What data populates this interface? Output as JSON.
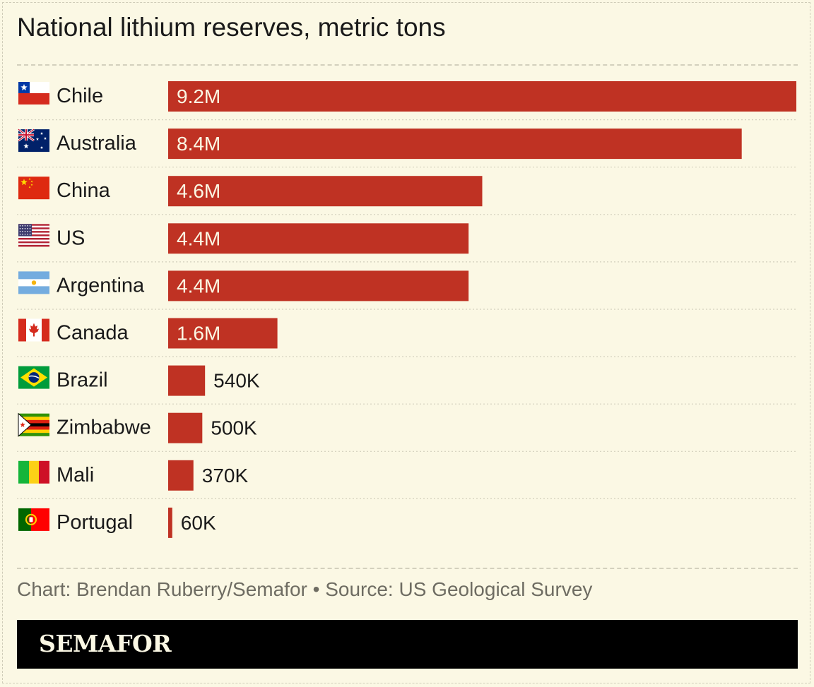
{
  "title": "National lithium reserves, metric tons",
  "caption": "Chart: Brendan Ruberry/Semafor • Source: US Geological Survey",
  "footer": {
    "logo": "SEMAFOR"
  },
  "colors": {
    "background": "#fbf8e4",
    "bar": "#bf3223",
    "text": "#1a1a1a",
    "muted": "#6e6c62",
    "footer": "#000000"
  },
  "chart_data": {
    "type": "bar",
    "orientation": "horizontal",
    "categories": [
      "Chile",
      "Australia",
      "China",
      "US",
      "Argentina",
      "Canada",
      "Brazil",
      "Zimbabwe",
      "Mali",
      "Portugal"
    ],
    "values": [
      9200000,
      8400000,
      4600000,
      4400000,
      4400000,
      1600000,
      540000,
      500000,
      370000,
      60000
    ],
    "labels": [
      "9.2M",
      "8.4M",
      "4.6M",
      "4.4M",
      "4.4M",
      "1.6M",
      "540K",
      "500K",
      "370K",
      "60K"
    ],
    "flags": [
      "chile-flag-icon",
      "australia-flag-icon",
      "china-flag-icon",
      "us-flag-icon",
      "argentina-flag-icon",
      "canada-flag-icon",
      "brazil-flag-icon",
      "zimbabwe-flag-icon",
      "mali-flag-icon",
      "portugal-flag-icon"
    ],
    "xlim": [
      0,
      9200000
    ],
    "grid": false
  }
}
